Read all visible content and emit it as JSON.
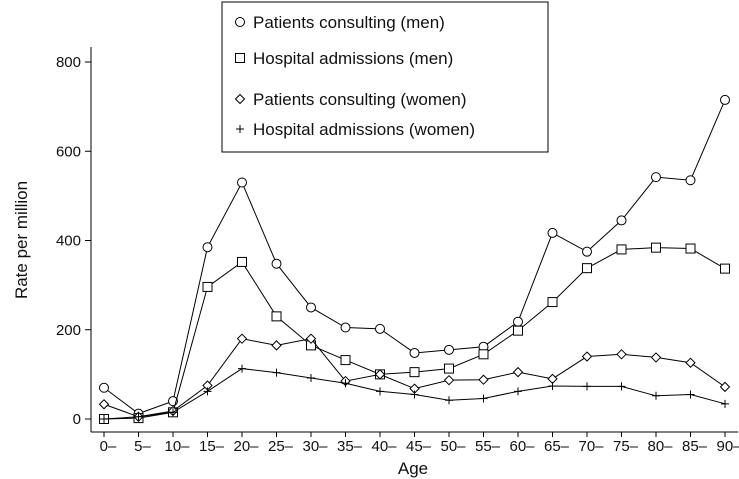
{
  "chart_data": {
    "type": "line",
    "title": "",
    "xlabel": "Age",
    "ylabel": "Rate per million",
    "categories": [
      "0–",
      "5–",
      "10–",
      "15–",
      "20–",
      "25–",
      "30–",
      "35–",
      "40–",
      "45–",
      "50–",
      "55–",
      "60–",
      "65–",
      "70–",
      "75–",
      "80–",
      "85–",
      "90–"
    ],
    "ylim": [
      0,
      830
    ],
    "yticks": [
      0,
      200,
      400,
      600,
      800
    ],
    "grid": false,
    "legend_position": "top-center",
    "series": [
      {
        "name": "Patients consulting (men)",
        "marker": "circle",
        "values": [
          70,
          12,
          40,
          385,
          530,
          348,
          250,
          205,
          202,
          148,
          155,
          162,
          218,
          417,
          375,
          445,
          542,
          535,
          715
        ]
      },
      {
        "name": "Hospital admissions (men)",
        "marker": "square",
        "values": [
          0,
          2,
          15,
          296,
          352,
          230,
          165,
          132,
          100,
          105,
          113,
          145,
          198,
          262,
          338,
          380,
          384,
          382,
          337
        ]
      },
      {
        "name": "Patients consulting (women)",
        "marker": "diamond",
        "values": [
          33,
          5,
          18,
          75,
          180,
          165,
          180,
          85,
          100,
          68,
          87,
          88,
          105,
          90,
          140,
          145,
          138,
          126,
          72
        ]
      },
      {
        "name": "Hospital admissions (women)",
        "marker": "plus",
        "values": [
          0,
          5,
          15,
          62,
          113,
          104,
          92,
          80,
          62,
          55,
          42,
          46,
          62,
          74,
          73,
          73,
          52,
          55,
          34
        ]
      }
    ]
  }
}
